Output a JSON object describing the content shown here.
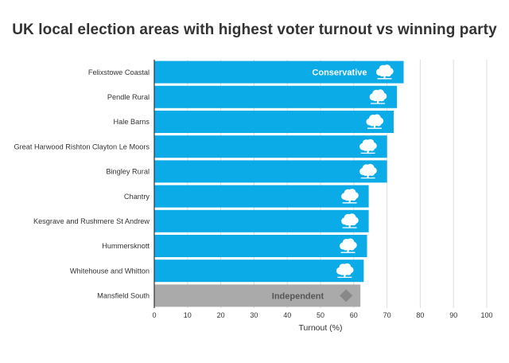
{
  "chart_data": {
    "type": "bar",
    "orientation": "horizontal",
    "title": "UK local election areas with highest voter turnout vs winning party",
    "xlabel": "Turnout (%)",
    "ylabel": "",
    "xlim": [
      0,
      100
    ],
    "x_ticks": [
      "0",
      "10",
      "20",
      "30",
      "40",
      "50",
      "60",
      "70",
      "80",
      "90",
      "100"
    ],
    "grid": "vertical",
    "categories": [
      "Felixstowe Coastal",
      "Pendle Rural",
      "Hale Barns",
      "Great Harwood Rishton Clayton Le Moors",
      "Bingley Rural",
      "Chantry",
      "Kesgrave and Rushmere St Andrew",
      "Hummersknott",
      "Whitehouse and Whitton",
      "Mansfield South"
    ],
    "values": [
      75,
      73,
      72,
      70,
      70,
      64.5,
      64.5,
      64,
      63,
      62
    ],
    "party": [
      "Conservative",
      "Conservative",
      "Conservative",
      "Conservative",
      "Conservative",
      "Conservative",
      "Conservative",
      "Conservative",
      "Conservative",
      "Independent"
    ],
    "bar_labels": [
      "Conservative",
      "",
      "",
      "",
      "",
      "",
      "",
      "",
      "",
      "Independent"
    ],
    "colors": {
      "Conservative": "#0aabe6",
      "Independent": "#aaaaaa"
    },
    "icons": {
      "Conservative": "oak-tree-icon",
      "Independent": "diamond-icon"
    }
  }
}
